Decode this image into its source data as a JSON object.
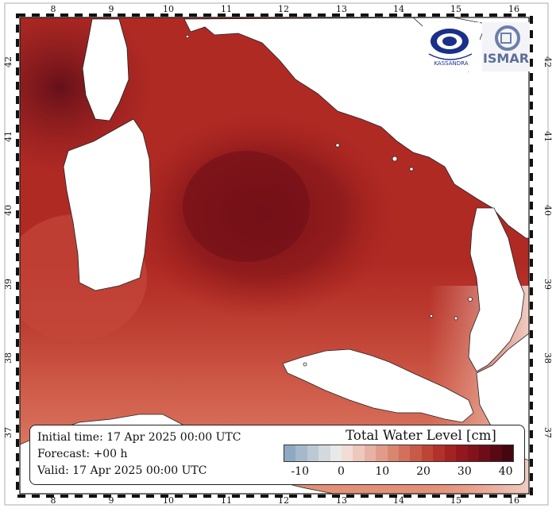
{
  "map": {
    "x_ticks": [
      "8",
      "9",
      "10",
      "11",
      "12",
      "13",
      "14",
      "15",
      "16"
    ],
    "y_ticks": [
      "42",
      "41",
      "40",
      "39",
      "38",
      "37"
    ],
    "colors": {
      "sea_shallow": "#b9372c",
      "sea_mid": "#a5231e",
      "sea_deep": "#7d1318",
      "sea_light": "#e2907a",
      "land": "#ffffff",
      "frame": "#111111"
    }
  },
  "info": {
    "initial_time": "Initial time: 17 Apr 2025 00:00 UTC",
    "forecast": "Forecast: +00 h",
    "valid": "Valid: 17 Apr 2025 00:00 UTC"
  },
  "legend": {
    "title": "Total Water Level [cm]",
    "ticks": [
      "-10",
      "0",
      "10",
      "20",
      "30",
      "40"
    ],
    "tick_values": [
      -10,
      0,
      10,
      20,
      30,
      40
    ],
    "range": [
      -14,
      42
    ],
    "colors": [
      "#8fa9c2",
      "#a6b9cc",
      "#bcc9d5",
      "#d3dadf",
      "#e9e9e9",
      "#f1dcd6",
      "#edc8bd",
      "#e7b2a3",
      "#e09c89",
      "#d98671",
      "#d2705c",
      "#c85a49",
      "#bd4536",
      "#b2312a",
      "#a42220",
      "#93171c",
      "#82121b",
      "#6e0d18",
      "#5a0914",
      "#460610"
    ]
  },
  "logos": {
    "left": {
      "icon": "kassandra-logo",
      "text": "KASSANDRA"
    },
    "right": {
      "icon": "ismar-logo",
      "text": "ISMAR"
    }
  }
}
